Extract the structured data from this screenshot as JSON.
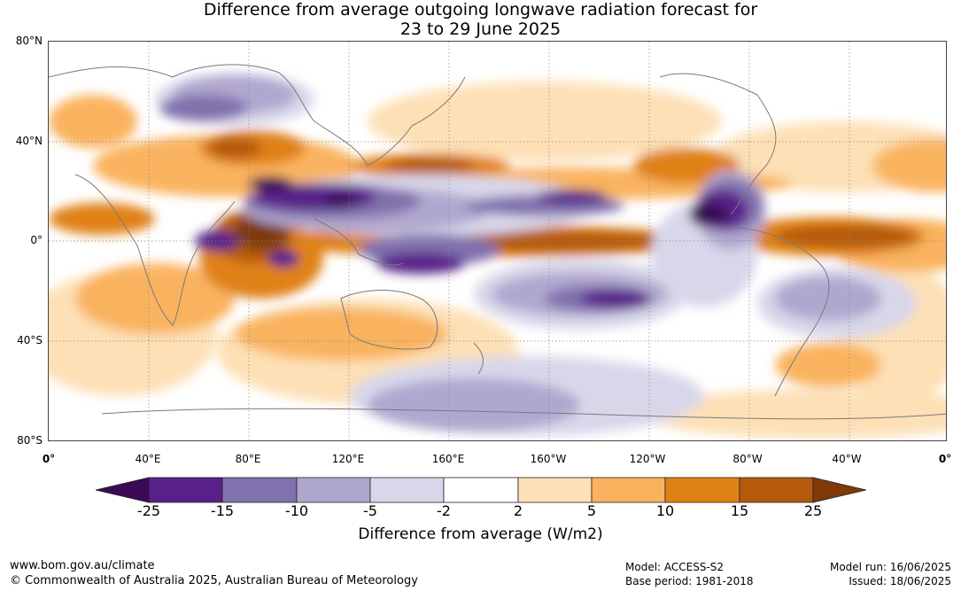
{
  "title_line1": "Difference from average outgoing longwave radiation forecast for",
  "title_line2": "23 to 29 June 2025",
  "lat_labels": [
    "80°N",
    "40°N",
    "0°",
    "40°S",
    "80°S"
  ],
  "lon_labels": [
    "0°",
    "40°E",
    "80°E",
    "120°E",
    "160°E",
    "160°W",
    "120°W",
    "80°W",
    "40°W",
    "0°"
  ],
  "colorbar": {
    "ticks": [
      "-25",
      "-15",
      "-10",
      "-5",
      "-2",
      "2",
      "5",
      "10",
      "15",
      "25"
    ],
    "colors": [
      "#3b0a55",
      "#582189",
      "#8171ad",
      "#b0a7cf",
      "#d8d7ea",
      "#ffffff",
      "#fde0b6",
      "#f9b35f",
      "#e08116",
      "#b55a0c",
      "#7e3a09"
    ],
    "label": "Difference from average (W/m2)"
  },
  "footer": {
    "url": "www.bom.gov.au/climate",
    "copyright": "© Commonwealth of Australia 2025, Australian Bureau of Meteorology",
    "model": "Model: ACCESS-S2",
    "base_period": "Base period: 1981-2018",
    "model_run": "Model run: 16/06/2025",
    "issued": "Issued: 18/06/2025"
  },
  "map_colors": {
    "coast": "#7a7a7a",
    "grid": "#888888"
  }
}
